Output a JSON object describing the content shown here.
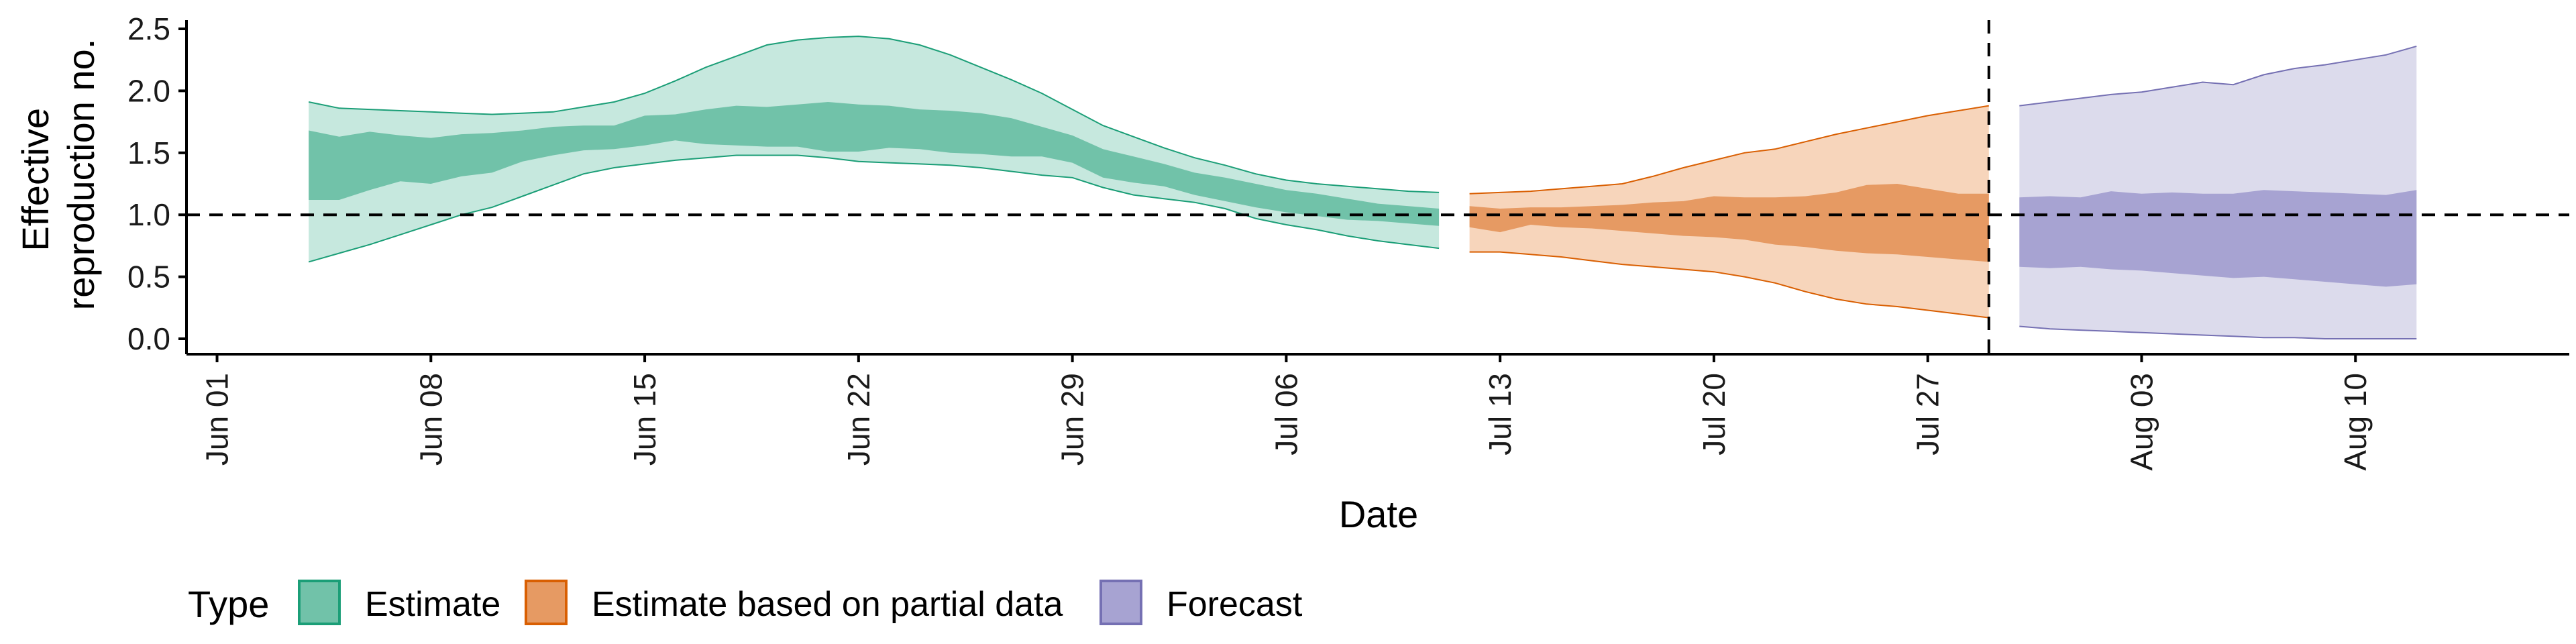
{
  "chart_data": {
    "type": "area",
    "xlabel": "Date",
    "ylabel": [
      "Effective",
      "reproduction no."
    ],
    "ylim": [
      0,
      2.5
    ],
    "yticks": [
      0.0,
      0.5,
      1.0,
      1.5,
      2.0,
      2.5
    ],
    "ytick_labels": [
      "0.0",
      "0.5",
      "1.0",
      "1.5",
      "2.0",
      "2.5"
    ],
    "xlim": [
      "2020-05-31",
      "2020-08-17"
    ],
    "xticks": [
      "2020-06-01",
      "2020-06-08",
      "2020-06-15",
      "2020-06-22",
      "2020-06-29",
      "2020-07-06",
      "2020-07-13",
      "2020-07-20",
      "2020-07-27",
      "2020-08-03",
      "2020-08-10"
    ],
    "xtick_labels": [
      "Jun 01",
      "Jun 08",
      "Jun 15",
      "Jun 22",
      "Jun 29",
      "Jul 06",
      "Jul 13",
      "Jul 20",
      "Jul 27",
      "Aug 03",
      "Aug 10"
    ],
    "reference_hline": 1.0,
    "reference_vline": "2020-07-29",
    "legend": {
      "title": "Type",
      "position": "bottom-left",
      "items": [
        "Estimate",
        "Estimate based on partial data",
        "Forecast"
      ]
    },
    "series": [
      {
        "name": "Estimate",
        "fill_light": "#c6e8de",
        "fill_dark": "#71c2a9",
        "line_color": "#1b9e77",
        "x": [
          "2020-06-04",
          "2020-06-05",
          "2020-06-06",
          "2020-06-07",
          "2020-06-08",
          "2020-06-09",
          "2020-06-10",
          "2020-06-11",
          "2020-06-12",
          "2020-06-13",
          "2020-06-14",
          "2020-06-15",
          "2020-06-16",
          "2020-06-17",
          "2020-06-18",
          "2020-06-19",
          "2020-06-20",
          "2020-06-21",
          "2020-06-22",
          "2020-06-23",
          "2020-06-24",
          "2020-06-25",
          "2020-06-26",
          "2020-06-27",
          "2020-06-28",
          "2020-06-29",
          "2020-06-30",
          "2020-07-01",
          "2020-07-02",
          "2020-07-03",
          "2020-07-04",
          "2020-07-05",
          "2020-07-06",
          "2020-07-07",
          "2020-07-08",
          "2020-07-09",
          "2020-07-10",
          "2020-07-11"
        ],
        "lower_90": [
          0.62,
          0.69,
          0.76,
          0.84,
          0.92,
          1.0,
          1.06,
          1.15,
          1.24,
          1.33,
          1.38,
          1.41,
          1.44,
          1.46,
          1.48,
          1.48,
          1.48,
          1.46,
          1.43,
          1.42,
          1.41,
          1.4,
          1.38,
          1.35,
          1.32,
          1.3,
          1.22,
          1.16,
          1.13,
          1.1,
          1.05,
          0.97,
          0.92,
          0.88,
          0.83,
          0.79,
          0.76,
          0.73
        ],
        "upper_90": [
          1.91,
          1.86,
          1.85,
          1.84,
          1.83,
          1.82,
          1.81,
          1.82,
          1.83,
          1.87,
          1.91,
          1.98,
          2.08,
          2.19,
          2.28,
          2.37,
          2.41,
          2.43,
          2.44,
          2.42,
          2.37,
          2.29,
          2.19,
          2.09,
          1.98,
          1.85,
          1.72,
          1.63,
          1.54,
          1.46,
          1.4,
          1.33,
          1.28,
          1.25,
          1.23,
          1.21,
          1.19,
          1.18
        ],
        "lower_50": [
          1.12,
          1.12,
          1.2,
          1.27,
          1.25,
          1.31,
          1.34,
          1.43,
          1.48,
          1.52,
          1.53,
          1.56,
          1.6,
          1.57,
          1.56,
          1.55,
          1.55,
          1.51,
          1.51,
          1.54,
          1.53,
          1.5,
          1.49,
          1.47,
          1.47,
          1.42,
          1.3,
          1.26,
          1.23,
          1.16,
          1.11,
          1.06,
          1.02,
          0.99,
          0.96,
          0.95,
          0.93,
          0.91
        ],
        "upper_50": [
          1.68,
          1.63,
          1.67,
          1.64,
          1.62,
          1.65,
          1.66,
          1.68,
          1.71,
          1.72,
          1.72,
          1.8,
          1.81,
          1.85,
          1.88,
          1.87,
          1.89,
          1.91,
          1.89,
          1.88,
          1.85,
          1.84,
          1.82,
          1.78,
          1.71,
          1.64,
          1.53,
          1.47,
          1.41,
          1.34,
          1.3,
          1.25,
          1.2,
          1.17,
          1.13,
          1.09,
          1.07,
          1.05
        ]
      },
      {
        "name": "Estimate based on partial data",
        "fill_light": "#f7d5bb",
        "fill_dark": "#e69a63",
        "line_color": "#d95f02",
        "x": [
          "2020-07-12",
          "2020-07-13",
          "2020-07-14",
          "2020-07-15",
          "2020-07-16",
          "2020-07-17",
          "2020-07-18",
          "2020-07-19",
          "2020-07-20",
          "2020-07-21",
          "2020-07-22",
          "2020-07-23",
          "2020-07-24",
          "2020-07-25",
          "2020-07-26",
          "2020-07-27",
          "2020-07-28",
          "2020-07-29"
        ],
        "lower_90": [
          0.7,
          0.7,
          0.68,
          0.66,
          0.63,
          0.6,
          0.58,
          0.56,
          0.54,
          0.5,
          0.45,
          0.38,
          0.32,
          0.28,
          0.26,
          0.23,
          0.2,
          0.17
        ],
        "upper_90": [
          1.17,
          1.18,
          1.19,
          1.21,
          1.23,
          1.25,
          1.31,
          1.38,
          1.44,
          1.5,
          1.53,
          1.59,
          1.65,
          1.7,
          1.75,
          1.8,
          1.84,
          1.88
        ],
        "lower_50": [
          0.9,
          0.86,
          0.92,
          0.9,
          0.89,
          0.87,
          0.85,
          0.83,
          0.82,
          0.8,
          0.76,
          0.74,
          0.71,
          0.69,
          0.68,
          0.66,
          0.64,
          0.62
        ],
        "upper_50": [
          1.07,
          1.05,
          1.06,
          1.06,
          1.07,
          1.08,
          1.1,
          1.11,
          1.15,
          1.14,
          1.14,
          1.15,
          1.18,
          1.24,
          1.25,
          1.21,
          1.17,
          1.17
        ]
      },
      {
        "name": "Forecast",
        "fill_light": "#dcdbec",
        "fill_dark": "#a7a3d2",
        "line_color": "#7570b3",
        "x": [
          "2020-07-30",
          "2020-07-31",
          "2020-08-01",
          "2020-08-02",
          "2020-08-03",
          "2020-08-04",
          "2020-08-05",
          "2020-08-06",
          "2020-08-07",
          "2020-08-08",
          "2020-08-09",
          "2020-08-10",
          "2020-08-11",
          "2020-08-12"
        ],
        "lower_90": [
          0.1,
          0.08,
          0.07,
          0.06,
          0.05,
          0.04,
          0.03,
          0.02,
          0.01,
          0.01,
          0.0,
          0.0,
          0.0,
          0.0
        ],
        "upper_90": [
          1.88,
          1.91,
          1.94,
          1.97,
          1.99,
          2.03,
          2.07,
          2.05,
          2.13,
          2.18,
          2.21,
          2.25,
          2.29,
          2.36
        ],
        "lower_50": [
          0.58,
          0.57,
          0.58,
          0.56,
          0.55,
          0.53,
          0.51,
          0.49,
          0.5,
          0.48,
          0.46,
          0.44,
          0.42,
          0.44
        ],
        "upper_50": [
          1.14,
          1.15,
          1.14,
          1.19,
          1.17,
          1.18,
          1.17,
          1.17,
          1.2,
          1.19,
          1.18,
          1.17,
          1.16,
          1.2
        ]
      }
    ]
  }
}
